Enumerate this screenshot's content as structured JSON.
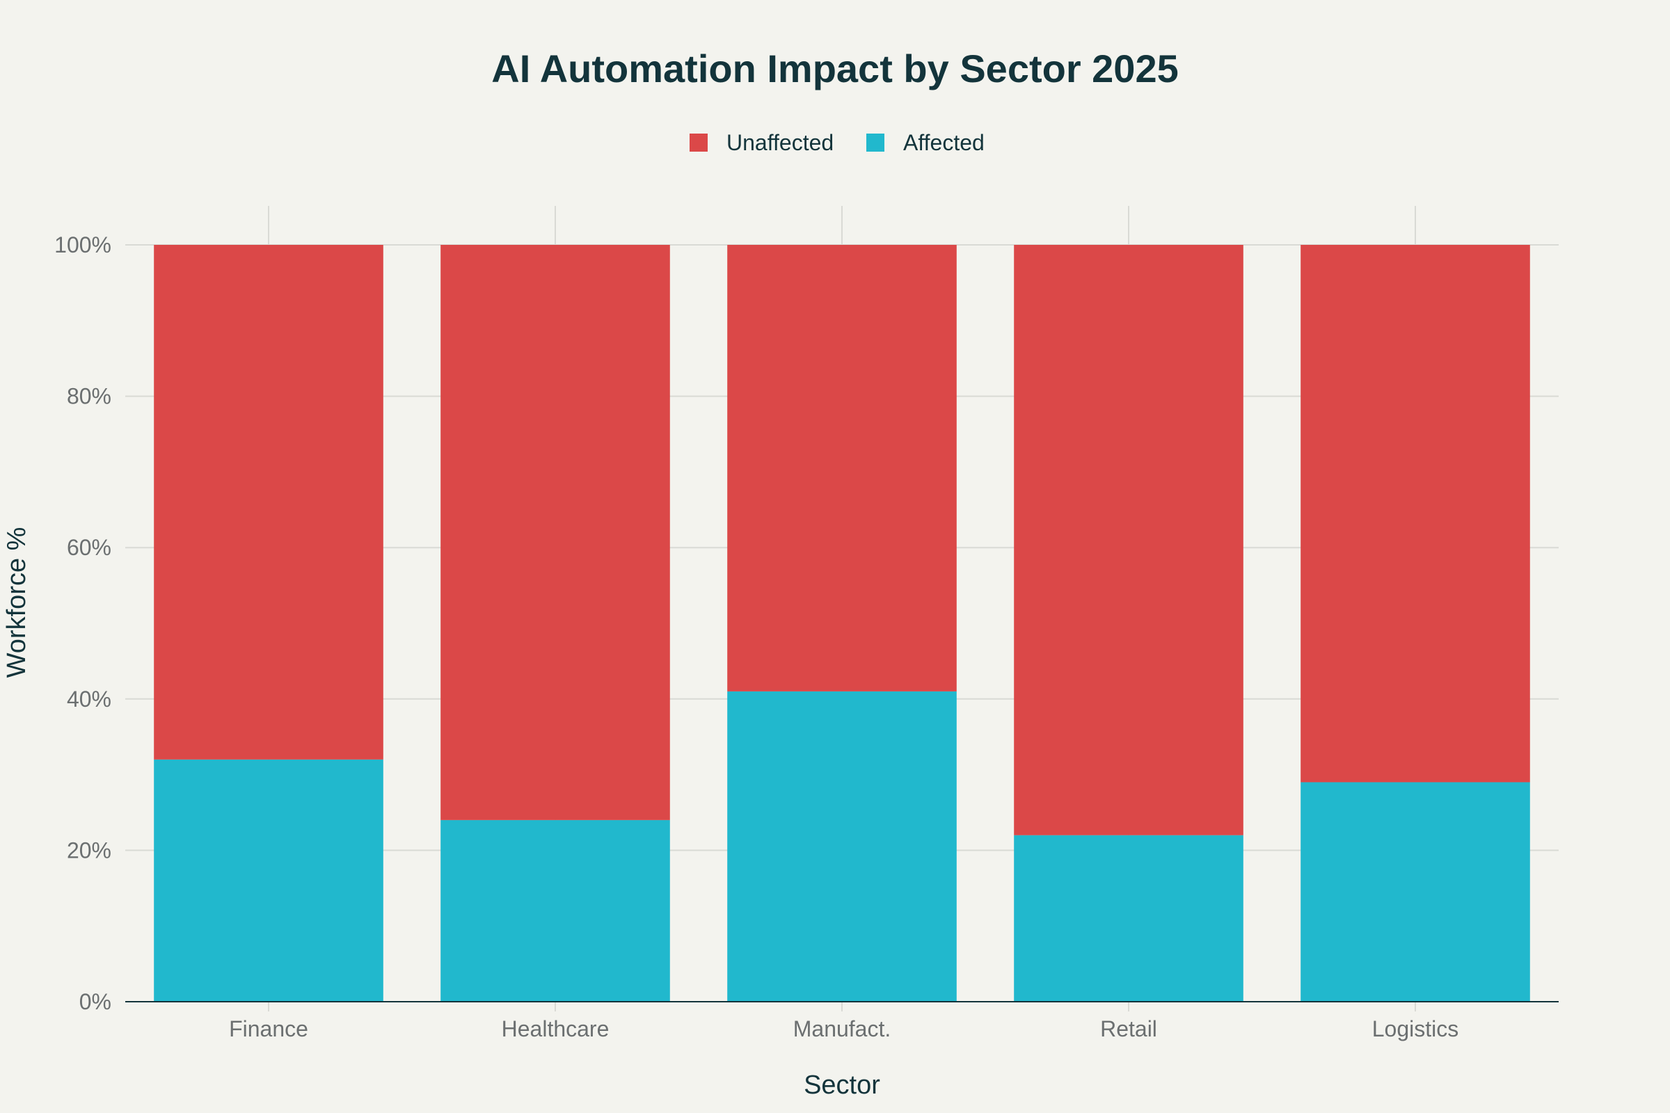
{
  "chart_data": {
    "type": "bar",
    "stacked": true,
    "title": "AI Automation Impact by Sector 2025",
    "xlabel": "Sector",
    "ylabel": "Workforce %",
    "categories": [
      "Finance",
      "Healthcare",
      "Manufact.",
      "Retail",
      "Logistics"
    ],
    "series": [
      {
        "name": "Affected",
        "color": "#21b8cd",
        "values": [
          32,
          24,
          41,
          22,
          29
        ]
      },
      {
        "name": "Unaffected",
        "color": "#db4848",
        "values": [
          68,
          76,
          59,
          78,
          71
        ]
      }
    ],
    "legend_order": [
      "Unaffected",
      "Affected"
    ],
    "legend_position": "top-center",
    "ylim": [
      0,
      100
    ],
    "yticks": [
      0,
      20,
      40,
      60,
      80,
      100
    ],
    "ytick_labels": [
      "0%",
      "20%",
      "40%",
      "60%",
      "80%",
      "100%"
    ],
    "grid": true,
    "colors": {
      "background": "#f3f3ee",
      "text": "#13343b",
      "tick_text": "#6b6f70",
      "grid": "#d9dad5"
    }
  }
}
